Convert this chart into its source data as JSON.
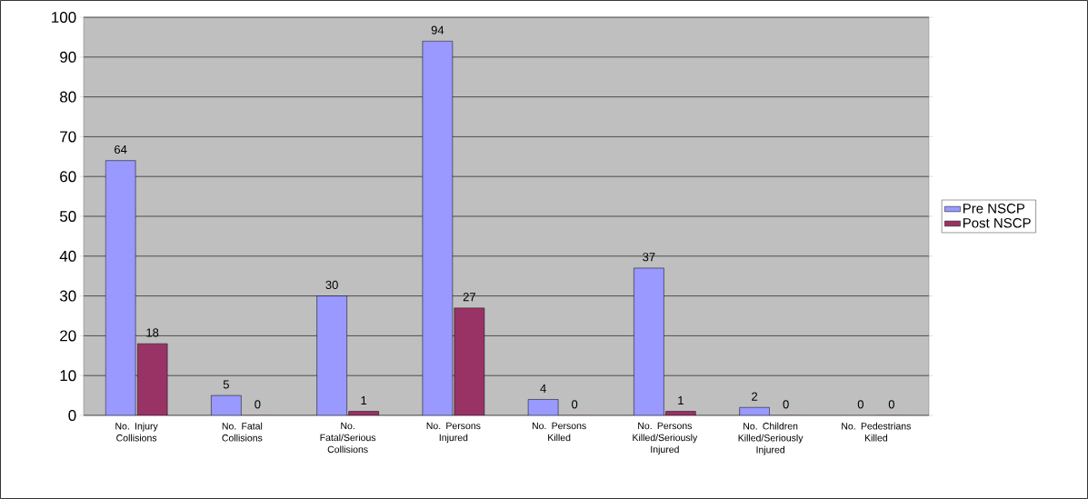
{
  "chart_data": {
    "type": "bar",
    "categories": [
      "No. Injury Collisions",
      "No. Fatal Collisions",
      "No. Fatal/Serious Collisions",
      "No. Persons Injured",
      "No. Persons Killed",
      "No. Persons Killed/Seriously Injured",
      "No. Children Killed/Seriously Injured",
      "No. Pedestrians Killed"
    ],
    "series": [
      {
        "name": "Pre NSCP",
        "color": "#9999ff",
        "values": [
          64,
          5,
          30,
          94,
          4,
          37,
          2,
          0
        ]
      },
      {
        "name": "Post NSCP",
        "color": "#993366",
        "values": [
          18,
          0,
          1,
          27,
          0,
          1,
          0,
          0
        ]
      }
    ],
    "ylim": [
      0,
      100
    ],
    "yticks": [
      0,
      10,
      20,
      30,
      40,
      50,
      60,
      70,
      80,
      90,
      100
    ],
    "grid": "y",
    "legend": "right",
    "data_labels": true
  }
}
